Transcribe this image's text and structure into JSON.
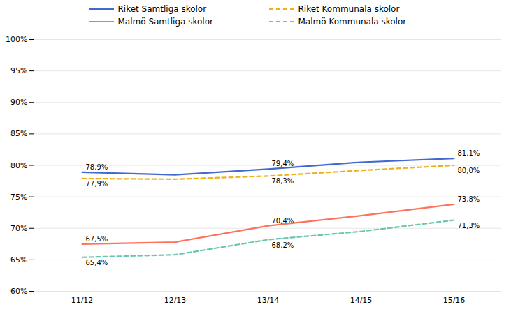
{
  "chart_data": {
    "type": "line",
    "categories": [
      "11/12",
      "12/13",
      "13/14",
      "14/15",
      "15/16"
    ],
    "series": [
      {
        "name": "Riket Samtliga skolor",
        "values": [
          78.9,
          78.5,
          79.4,
          80.5,
          81.1
        ],
        "line_style": "solid",
        "value_labels": [
          "78,9%",
          null,
          "79,4%",
          null,
          "81,1%"
        ]
      },
      {
        "name": "Riket Kommunala skolor",
        "values": [
          77.9,
          77.8,
          78.3,
          79.2,
          80.0
        ],
        "line_style": "dashed",
        "value_labels": [
          "77,9%",
          null,
          "78,3%",
          null,
          "80,0%"
        ]
      },
      {
        "name": "Malmö Samtliga skolor",
        "values": [
          67.5,
          67.8,
          70.4,
          72.0,
          73.8
        ],
        "line_style": "solid",
        "value_labels": [
          "67,5%",
          null,
          "70,4%",
          null,
          "73,8%"
        ]
      },
      {
        "name": "Malmö Kommunala skolor",
        "values": [
          65.4,
          65.8,
          68.2,
          69.5,
          71.3
        ],
        "line_style": "dashed",
        "value_labels": [
          "65,4%",
          null,
          "68,2%",
          null,
          "71,3%"
        ]
      }
    ],
    "ylim": [
      60,
      100
    ],
    "yticks": [
      {
        "value": 60,
        "label": "60%"
      },
      {
        "value": 65,
        "label": "65%"
      },
      {
        "value": 70,
        "label": "70%"
      },
      {
        "value": 75,
        "label": "75%"
      },
      {
        "value": 80,
        "label": "80%"
      },
      {
        "value": 85,
        "label": "85%"
      },
      {
        "value": 90,
        "label": "90%"
      },
      {
        "value": 95,
        "label": "95%"
      },
      {
        "value": 100,
        "label": "100%"
      }
    ],
    "grid": true,
    "data_labels": true,
    "legend": "top"
  }
}
